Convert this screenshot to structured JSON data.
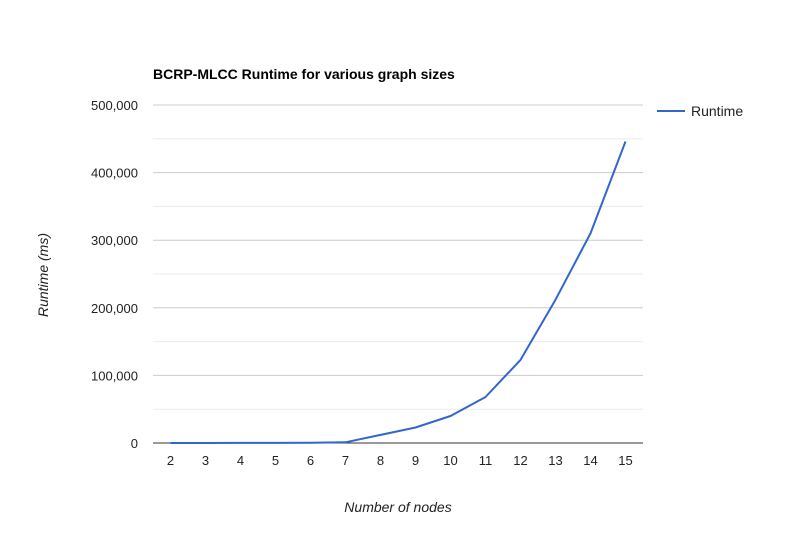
{
  "chart_data": {
    "type": "line",
    "title": "BCRP-MLCC Runtime for various graph sizes",
    "xlabel": "Number of nodes",
    "ylabel": "Runtime (ms)",
    "categories": [
      "2",
      "3",
      "4",
      "5",
      "6",
      "7",
      "8",
      "9",
      "10",
      "11",
      "12",
      "13",
      "14",
      "15"
    ],
    "ylim": [
      0,
      500000
    ],
    "yticks": [
      0,
      100000,
      200000,
      300000,
      400000,
      500000
    ],
    "ytick_labels": [
      "0",
      "100,000",
      "200,000",
      "300,000",
      "400,000",
      "500,000"
    ],
    "minor_gridlines": true,
    "legend_position": "right",
    "series": [
      {
        "name": "Runtime",
        "color": "#3366cc",
        "values": [
          0,
          0,
          100,
          200,
          500,
          1000,
          12000,
          23000,
          40000,
          68000,
          123000,
          212000,
          310000,
          446000
        ]
      }
    ]
  }
}
